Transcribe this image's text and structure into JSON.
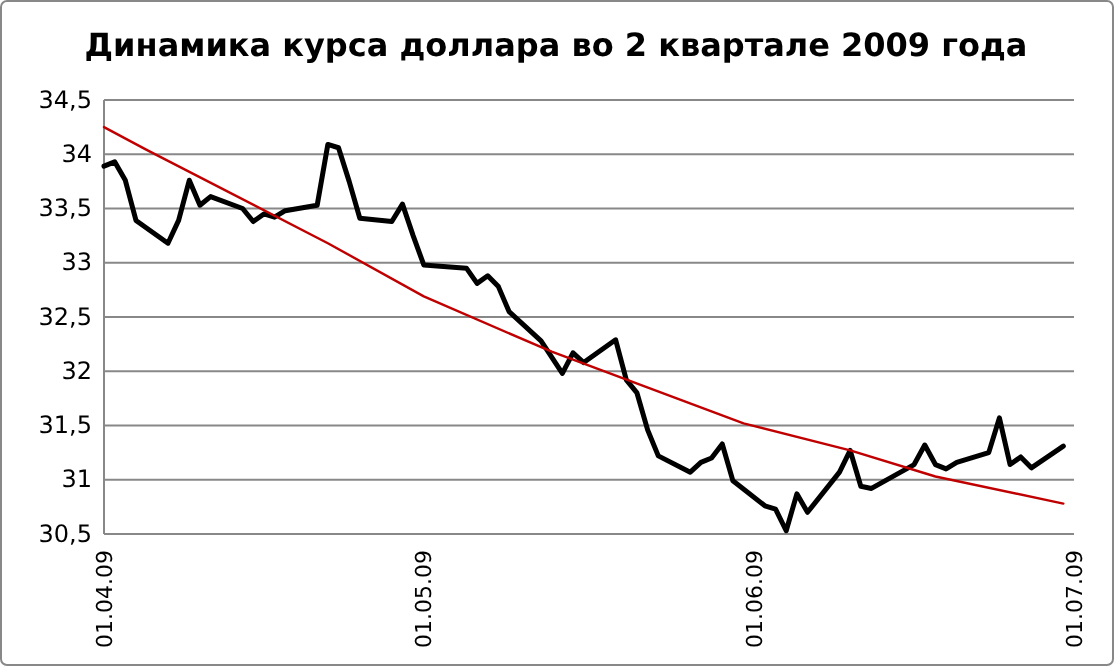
{
  "chart_data": {
    "type": "line",
    "title": "Динамика курса доллара во 2 квартале 2009 года",
    "x": [
      "2009-04-01",
      "2009-04-02",
      "2009-04-03",
      "2009-04-04",
      "2009-04-07",
      "2009-04-08",
      "2009-04-09",
      "2009-04-10",
      "2009-04-11",
      "2009-04-14",
      "2009-04-15",
      "2009-04-16",
      "2009-04-17",
      "2009-04-18",
      "2009-04-21",
      "2009-04-22",
      "2009-04-23",
      "2009-04-24",
      "2009-04-25",
      "2009-04-28",
      "2009-04-29",
      "2009-04-30",
      "2009-05-01",
      "2009-05-05",
      "2009-05-06",
      "2009-05-07",
      "2009-05-08",
      "2009-05-09",
      "2009-05-12",
      "2009-05-14",
      "2009-05-15",
      "2009-05-16",
      "2009-05-19",
      "2009-05-20",
      "2009-05-21",
      "2009-05-22",
      "2009-05-23",
      "2009-05-26",
      "2009-05-27",
      "2009-05-28",
      "2009-05-29",
      "2009-05-30",
      "2009-06-02",
      "2009-06-03",
      "2009-06-04",
      "2009-06-05",
      "2009-06-06",
      "2009-06-09",
      "2009-06-10",
      "2009-06-11",
      "2009-06-12",
      "2009-06-16",
      "2009-06-17",
      "2009-06-18",
      "2009-06-19",
      "2009-06-20",
      "2009-06-23",
      "2009-06-24",
      "2009-06-25",
      "2009-06-26",
      "2009-06-27",
      "2009-06-30"
    ],
    "series": [
      {
        "color": "#000000",
        "values": [
          33.89,
          33.93,
          33.76,
          33.39,
          33.18,
          33.39,
          33.76,
          33.53,
          33.61,
          33.5,
          33.38,
          33.45,
          33.42,
          33.48,
          33.53,
          34.09,
          34.06,
          33.75,
          33.41,
          33.38,
          33.54,
          33.25,
          32.98,
          32.95,
          32.81,
          32.88,
          32.78,
          32.55,
          32.28,
          31.98,
          32.17,
          32.08,
          32.29,
          31.92,
          31.8,
          31.46,
          31.22,
          31.07,
          31.16,
          31.2,
          31.33,
          30.99,
          30.76,
          30.73,
          30.53,
          30.87,
          30.7,
          31.07,
          31.27,
          30.94,
          30.92,
          31.14,
          31.32,
          31.14,
          31.1,
          31.16,
          31.25,
          31.57,
          31.14,
          31.21,
          31.11,
          31.31
        ]
      },
      {
        "type": "line",
        "color": "#c00000",
        "x": [
          "2009-04-01",
          "2009-04-05",
          "2009-04-22",
          "2009-05-01",
          "2009-05-13",
          "2009-05-31",
          "2009-06-10",
          "2009-06-18",
          "2009-06-30"
        ],
        "values": [
          34.25,
          34.04,
          33.18,
          32.69,
          32.18,
          31.52,
          31.27,
          31.03,
          30.78
        ]
      }
    ],
    "xlim": [
      "2009-04-01",
      "2009-07-01"
    ],
    "xticks": [
      {
        "value": "2009-04-01",
        "label": "01.04.09"
      },
      {
        "value": "2009-05-01",
        "label": "01.05.09"
      },
      {
        "value": "2009-06-01",
        "label": "01.06.09"
      },
      {
        "value": "2009-07-01",
        "label": "01.07.09"
      }
    ],
    "ylim": [
      30.5,
      34.5
    ],
    "yticks": [
      {
        "value": 30.5,
        "label": "30,5"
      },
      {
        "value": 31,
        "label": "31"
      },
      {
        "value": 31.5,
        "label": "31,5"
      },
      {
        "value": 32,
        "label": "32"
      },
      {
        "value": 32.5,
        "label": "32,5"
      },
      {
        "value": 33,
        "label": "33"
      },
      {
        "value": 33.5,
        "label": "33,5"
      },
      {
        "value": 34,
        "label": "34"
      },
      {
        "value": 34.5,
        "label": "34,5"
      }
    ],
    "grid": "y",
    "marker": "none",
    "line_style": "solid"
  }
}
